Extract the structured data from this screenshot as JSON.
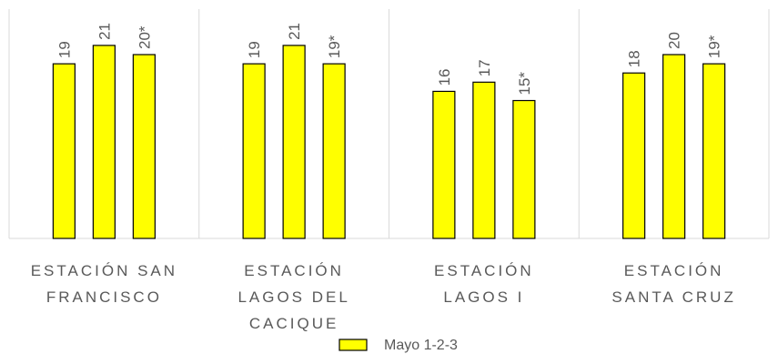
{
  "chart_data": {
    "type": "bar",
    "categories": [
      [
        "ESTACIÓN SAN",
        "FRANCISCO"
      ],
      [
        "ESTACIÓN",
        "LAGOS DEL",
        "CACIQUE"
      ],
      [
        "ESTACIÓN",
        "LAGOS I"
      ],
      [
        "ESTACIÓN",
        "SANTA CRUZ"
      ]
    ],
    "series": [
      {
        "name": "Mayo 1-2-3",
        "values": [
          [
            19,
            21,
            20
          ],
          [
            19,
            21,
            19
          ],
          [
            16,
            17,
            15
          ],
          [
            18,
            20,
            19
          ]
        ],
        "labels": [
          [
            "19",
            "21",
            "20*"
          ],
          [
            "19",
            "21",
            "19*"
          ],
          [
            "16",
            "17",
            "15*"
          ],
          [
            "18",
            "20",
            "19*"
          ]
        ],
        "color": "#ffff00"
      }
    ],
    "ylim": [
      0,
      25
    ],
    "grid": "vertical category separators",
    "legend": "bottom",
    "title": "",
    "xlabel": "",
    "ylabel": ""
  }
}
